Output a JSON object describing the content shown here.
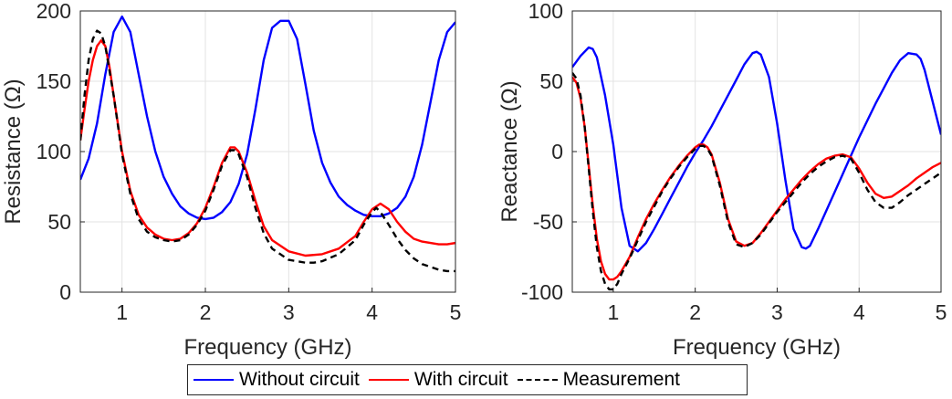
{
  "chart_data": [
    {
      "type": "line",
      "xlabel": "Frequency (GHz)",
      "ylabel": "Resistance (Ω)",
      "xlim": [
        0.5,
        5
      ],
      "ylim": [
        0,
        200
      ],
      "xticks": [
        "1",
        "2",
        "3",
        "4",
        "5"
      ],
      "yticks": [
        "0",
        "50",
        "100",
        "150",
        "200"
      ],
      "grid": true,
      "series": [
        {
          "name": "Without circuit",
          "x": [
            0.5,
            0.6,
            0.7,
            0.8,
            0.9,
            1.0,
            1.1,
            1.2,
            1.3,
            1.4,
            1.5,
            1.6,
            1.7,
            1.8,
            1.9,
            2.0,
            2.1,
            2.2,
            2.3,
            2.4,
            2.5,
            2.6,
            2.7,
            2.8,
            2.9,
            3.0,
            3.1,
            3.2,
            3.3,
            3.4,
            3.5,
            3.6,
            3.7,
            3.8,
            3.9,
            4.0,
            4.1,
            4.2,
            4.3,
            4.4,
            4.5,
            4.6,
            4.7,
            4.8,
            4.9,
            5.0
          ],
          "y": [
            80,
            95,
            120,
            155,
            185,
            196,
            185,
            155,
            125,
            100,
            82,
            70,
            61,
            56,
            53,
            52,
            53,
            57,
            64,
            77,
            98,
            130,
            165,
            188,
            193,
            193,
            180,
            148,
            115,
            92,
            78,
            68,
            62,
            58,
            55,
            54,
            54,
            56,
            60,
            68,
            82,
            105,
            135,
            165,
            185,
            192
          ]
        },
        {
          "name": "With circuit",
          "x": [
            0.5,
            0.55,
            0.6,
            0.65,
            0.7,
            0.75,
            0.8,
            0.85,
            0.9,
            1.0,
            1.1,
            1.2,
            1.3,
            1.4,
            1.5,
            1.6,
            1.7,
            1.8,
            1.9,
            2.0,
            2.1,
            2.2,
            2.3,
            2.35,
            2.4,
            2.5,
            2.6,
            2.7,
            2.8,
            3.0,
            3.2,
            3.4,
            3.6,
            3.8,
            3.9,
            4.0,
            4.1,
            4.2,
            4.3,
            4.4,
            4.5,
            4.6,
            4.7,
            4.8,
            4.9,
            5.0
          ],
          "y": [
            108,
            130,
            150,
            165,
            175,
            179,
            175,
            160,
            140,
            100,
            72,
            55,
            46,
            41,
            38,
            37,
            38,
            42,
            49,
            60,
            75,
            92,
            103,
            103,
            100,
            85,
            65,
            47,
            37,
            29,
            26,
            27,
            31,
            40,
            50,
            59,
            63,
            59,
            50,
            43,
            38,
            36,
            35,
            34,
            34,
            35
          ]
        },
        {
          "name": "Measurement",
          "x": [
            0.5,
            0.55,
            0.6,
            0.65,
            0.7,
            0.75,
            0.8,
            0.9,
            1.0,
            1.1,
            1.2,
            1.3,
            1.4,
            1.5,
            1.6,
            1.7,
            1.8,
            1.9,
            2.0,
            2.1,
            2.2,
            2.3,
            2.35,
            2.4,
            2.5,
            2.6,
            2.7,
            2.8,
            3.0,
            3.2,
            3.3,
            3.4,
            3.6,
            3.8,
            3.9,
            4.0,
            4.05,
            4.1,
            4.2,
            4.3,
            4.4,
            4.5,
            4.6,
            4.7,
            4.8,
            4.9,
            5.0
          ],
          "y": [
            108,
            140,
            165,
            180,
            186,
            184,
            175,
            140,
            98,
            70,
            52,
            43,
            39,
            37,
            36,
            37,
            41,
            48,
            58,
            73,
            90,
            101,
            101,
            98,
            82,
            60,
            42,
            31,
            23,
            21,
            21,
            22,
            27,
            37,
            48,
            57,
            60,
            57,
            48,
            38,
            30,
            24,
            20,
            18,
            16,
            15,
            15
          ]
        }
      ]
    },
    {
      "type": "line",
      "xlabel": "Frequency (GHz)",
      "ylabel": "Reactance (Ω)",
      "xlim": [
        0.5,
        5
      ],
      "ylim": [
        -100,
        100
      ],
      "xticks": [
        "1",
        "2",
        "3",
        "4",
        "5"
      ],
      "yticks": [
        "-100",
        "-50",
        "0",
        "50",
        "100"
      ],
      "grid": true,
      "series": [
        {
          "name": "Without circuit",
          "x": [
            0.5,
            0.6,
            0.7,
            0.75,
            0.8,
            0.9,
            1.0,
            1.1,
            1.2,
            1.3,
            1.4,
            1.5,
            1.6,
            1.7,
            1.8,
            1.9,
            2.0,
            2.1,
            2.2,
            2.3,
            2.4,
            2.5,
            2.6,
            2.7,
            2.75,
            2.8,
            2.9,
            3.0,
            3.1,
            3.2,
            3.3,
            3.35,
            3.4,
            3.5,
            3.6,
            3.7,
            3.8,
            3.9,
            4.0,
            4.1,
            4.2,
            4.3,
            4.4,
            4.5,
            4.6,
            4.7,
            4.75,
            4.8,
            4.9,
            5.0
          ],
          "y": [
            60,
            68,
            74,
            73,
            67,
            40,
            5,
            -40,
            -67,
            -71,
            -65,
            -55,
            -44,
            -33,
            -22,
            -11,
            -1,
            8,
            18,
            29,
            40,
            51,
            62,
            70,
            71,
            69,
            53,
            20,
            -20,
            -55,
            -68,
            -69,
            -67,
            -55,
            -42,
            -29,
            -16,
            -3,
            10,
            22,
            34,
            45,
            56,
            65,
            70,
            69,
            66,
            58,
            35,
            12
          ]
        },
        {
          "name": "With circuit",
          "x": [
            0.5,
            0.55,
            0.6,
            0.65,
            0.7,
            0.75,
            0.8,
            0.85,
            0.9,
            0.95,
            1.0,
            1.05,
            1.1,
            1.2,
            1.3,
            1.4,
            1.5,
            1.6,
            1.7,
            1.8,
            1.9,
            2.0,
            2.05,
            2.1,
            2.15,
            2.2,
            2.3,
            2.4,
            2.5,
            2.6,
            2.7,
            2.8,
            2.9,
            3.0,
            3.1,
            3.2,
            3.3,
            3.4,
            3.5,
            3.6,
            3.7,
            3.8,
            3.9,
            4.0,
            4.1,
            4.2,
            4.3,
            4.4,
            4.5,
            4.6,
            4.7,
            4.8,
            4.9,
            5.0
          ],
          "y": [
            53,
            49,
            38,
            18,
            -10,
            -38,
            -62,
            -78,
            -87,
            -91,
            -91,
            -89,
            -85,
            -75,
            -61,
            -48,
            -37,
            -27,
            -18,
            -10,
            -3,
            3,
            5,
            5,
            3,
            -2,
            -22,
            -48,
            -64,
            -67,
            -65,
            -58,
            -50,
            -42,
            -34,
            -27,
            -20,
            -14,
            -9,
            -5,
            -3,
            -2,
            -4,
            -12,
            -22,
            -30,
            -33,
            -32,
            -28,
            -24,
            -19,
            -15,
            -11,
            -8
          ]
        },
        {
          "name": "Measurement",
          "x": [
            0.5,
            0.55,
            0.6,
            0.65,
            0.7,
            0.75,
            0.8,
            0.85,
            0.9,
            0.95,
            1.0,
            1.05,
            1.1,
            1.2,
            1.3,
            1.4,
            1.5,
            1.6,
            1.7,
            1.8,
            1.9,
            2.0,
            2.05,
            2.1,
            2.15,
            2.2,
            2.3,
            2.4,
            2.5,
            2.6,
            2.7,
            2.8,
            2.9,
            3.0,
            3.1,
            3.2,
            3.3,
            3.4,
            3.5,
            3.6,
            3.7,
            3.8,
            3.9,
            4.0,
            4.1,
            4.2,
            4.3,
            4.4,
            4.5,
            4.6,
            4.7,
            4.8,
            4.9,
            5.0
          ],
          "y": [
            56,
            52,
            40,
            18,
            -12,
            -42,
            -68,
            -85,
            -94,
            -98,
            -98,
            -94,
            -87,
            -76,
            -63,
            -50,
            -39,
            -28,
            -19,
            -11,
            -4,
            2,
            4,
            4,
            2,
            -3,
            -24,
            -50,
            -66,
            -68,
            -65,
            -59,
            -51,
            -43,
            -36,
            -29,
            -22,
            -16,
            -11,
            -7,
            -4,
            -3,
            -5,
            -15,
            -27,
            -36,
            -40,
            -40,
            -36,
            -31,
            -27,
            -23,
            -19,
            -15
          ]
        }
      ]
    }
  ],
  "legend": {
    "items": [
      {
        "label": "Without circuit",
        "color": "#0000ff",
        "style": "solid"
      },
      {
        "label": "With circuit",
        "color": "#ff0000",
        "style": "solid"
      },
      {
        "label": "Measurement",
        "color": "#000000",
        "style": "dashed"
      }
    ]
  }
}
